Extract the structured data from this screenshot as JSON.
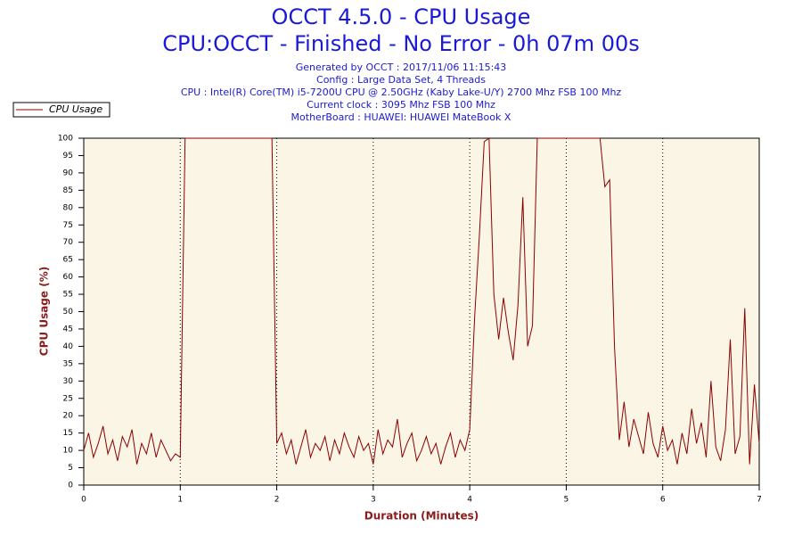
{
  "chart_data": {
    "type": "line",
    "title": "OCCT 4.5.0 - CPU Usage",
    "subtitle": "CPU:OCCT - Finished - No Error - 0h 07m 00s",
    "info_lines": [
      "Generated by OCCT : 2017/11/06 11:15:43",
      "Config : Large Data Set, 4 Threads",
      "CPU : Intel(R) Core(TM) i5-7200U CPU @ 2.50GHz (Kaby Lake-U/Y) 2700 Mhz FSB 100 Mhz",
      "Current clock : 3095 Mhz FSB 100 Mhz",
      "MotherBoard : HUAWEI: HUAWEI MateBook X"
    ],
    "xlabel": "Duration (Minutes)",
    "ylabel": "CPU Usage (%)",
    "xlim": [
      0,
      7
    ],
    "ylim": [
      0,
      100
    ],
    "xticks": [
      0,
      1,
      2,
      3,
      4,
      5,
      6,
      7
    ],
    "yticks": [
      0,
      5,
      10,
      15,
      20,
      25,
      30,
      35,
      40,
      45,
      50,
      55,
      60,
      65,
      70,
      75,
      80,
      85,
      90,
      95,
      100
    ],
    "grid": true,
    "x": [
      0,
      0.05,
      0.1,
      0.15,
      0.2,
      0.25,
      0.3,
      0.35,
      0.4,
      0.45,
      0.5,
      0.55,
      0.6,
      0.65,
      0.7,
      0.75,
      0.8,
      0.85,
      0.9,
      0.95,
      1,
      1.05,
      1.1,
      1.15,
      1.2,
      1.25,
      1.3,
      1.35,
      1.4,
      1.45,
      1.5,
      1.55,
      1.6,
      1.65,
      1.7,
      1.75,
      1.8,
      1.85,
      1.9,
      1.95,
      2,
      2.05,
      2.1,
      2.15,
      2.2,
      2.25,
      2.3,
      2.35,
      2.4,
      2.45,
      2.5,
      2.55,
      2.6,
      2.65,
      2.7,
      2.75,
      2.8,
      2.85,
      2.9,
      2.95,
      3,
      3.05,
      3.1,
      3.15,
      3.2,
      3.25,
      3.3,
      3.35,
      3.4,
      3.45,
      3.5,
      3.55,
      3.6,
      3.65,
      3.7,
      3.75,
      3.8,
      3.85,
      3.9,
      3.95,
      4,
      4.05,
      4.1,
      4.15,
      4.2,
      4.25,
      4.3,
      4.35,
      4.4,
      4.45,
      4.5,
      4.55,
      4.6,
      4.65,
      4.7,
      4.75,
      4.8,
      4.85,
      4.9,
      4.95,
      5,
      5.05,
      5.1,
      5.15,
      5.2,
      5.25,
      5.3,
      5.35,
      5.4,
      5.45,
      5.5,
      5.55,
      5.6,
      5.65,
      5.7,
      5.75,
      5.8,
      5.85,
      5.9,
      5.95,
      6,
      6.05,
      6.1,
      6.15,
      6.2,
      6.25,
      6.3,
      6.35,
      6.4,
      6.45,
      6.5,
      6.55,
      6.6,
      6.65,
      6.7,
      6.75,
      6.8,
      6.85,
      6.9,
      6.95,
      7
    ],
    "series": [
      {
        "name": "CPU Usage",
        "color": "#8b0000",
        "values": [
          10,
          15,
          8,
          12,
          17,
          9,
          13,
          7,
          14,
          11,
          16,
          6,
          12,
          9,
          15,
          8,
          13,
          10,
          7,
          9,
          8,
          100,
          100,
          100,
          100,
          100,
          100,
          100,
          100,
          100,
          100,
          100,
          100,
          100,
          100,
          100,
          100,
          100,
          100,
          100,
          12,
          15,
          9,
          13,
          6,
          11,
          16,
          8,
          12,
          10,
          14,
          7,
          13,
          9,
          15,
          11,
          8,
          14,
          10,
          12,
          6,
          16,
          9,
          13,
          11,
          19,
          8,
          12,
          15,
          7,
          10,
          14,
          9,
          12,
          6,
          11,
          15,
          8,
          13,
          10,
          16,
          48,
          72,
          99,
          100,
          55,
          42,
          54,
          44,
          36,
          52,
          83,
          40,
          46,
          100,
          100,
          100,
          100,
          100,
          100,
          100,
          100,
          100,
          100,
          100,
          100,
          100,
          100,
          86,
          88,
          40,
          13,
          24,
          11,
          19,
          14,
          9,
          21,
          12,
          8,
          17,
          10,
          13,
          6,
          15,
          9,
          22,
          12,
          18,
          8,
          30,
          11,
          7,
          16,
          42,
          9,
          14,
          51,
          6,
          29,
          12
        ]
      }
    ]
  }
}
